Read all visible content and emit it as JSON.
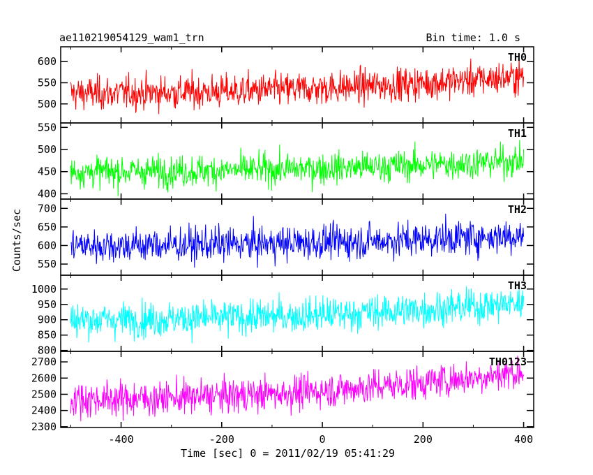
{
  "header": {
    "source": "ae110219054129_wam1_trn",
    "bin_time": "Bin time: 1.0 s"
  },
  "chart_data": {
    "type": "line",
    "xlabel": "Time [sec] 0 = 2011/02/19 05:41:29",
    "ylabel": "Counts/sec",
    "xlim": [
      -520,
      420
    ],
    "x_ticks": [
      -400,
      -200,
      0,
      200,
      400
    ],
    "x_range": [
      -500,
      400
    ],
    "bin_seconds": 1.0,
    "panels": [
      {
        "name": "TH0",
        "color": "#ff0000",
        "ylim": [
          455,
          635
        ],
        "y_ticks": [
          500,
          550,
          600
        ],
        "start_mean": 525,
        "end_mean": 565,
        "noise": 28
      },
      {
        "name": "TH1",
        "color": "#00ff00",
        "ylim": [
          388,
          560
        ],
        "y_ticks": [
          400,
          450,
          500,
          550
        ],
        "start_mean": 450,
        "end_mean": 475,
        "noise": 25
      },
      {
        "name": "TH2",
        "color": "#0000ff",
        "ylim": [
          520,
          725
        ],
        "y_ticks": [
          550,
          600,
          650,
          700
        ],
        "start_mean": 600,
        "end_mean": 628,
        "noise": 33
      },
      {
        "name": "TH3",
        "color": "#00ffff",
        "ylim": [
          797,
          1045
        ],
        "y_ticks": [
          800,
          850,
          900,
          950,
          1000
        ],
        "start_mean": 900,
        "end_mean": 955,
        "noise": 40
      },
      {
        "name": "TH0123",
        "color": "#ff00ff",
        "ylim": [
          2295,
          2765
        ],
        "y_ticks": [
          2300,
          2400,
          2500,
          2600,
          2700
        ],
        "start_mean": 2470,
        "end_mean": 2640,
        "noise": 75
      }
    ]
  }
}
